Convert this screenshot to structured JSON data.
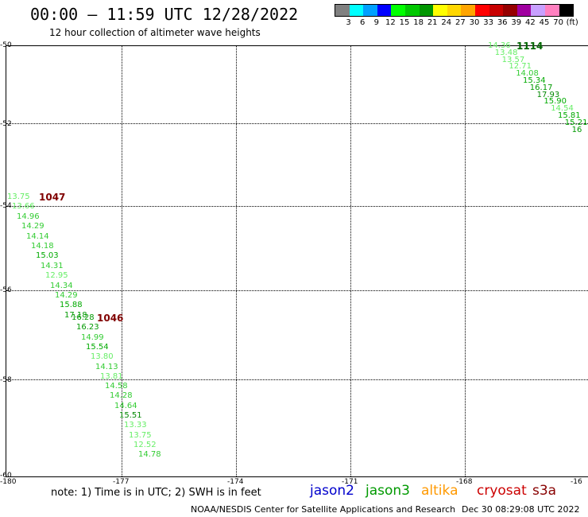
{
  "header": {
    "title": "00:00 – 11:59 UTC 12/28/2022",
    "subtitle": "12 hour collection of altimeter wave heights"
  },
  "legend": {
    "colors": [
      "#808080",
      "#00ffff",
      "#00a0ff",
      "#0000ff",
      "#00ff00",
      "#00c800",
      "#009600",
      "#ffff00",
      "#ffd700",
      "#ffa500",
      "#ff0000",
      "#c80000",
      "#960000",
      "#a000a0",
      "#c8a0ff",
      "#ff80c0",
      "#000000"
    ],
    "labels": [
      "3",
      "6",
      "9",
      "12",
      "15",
      "18",
      "21",
      "24",
      "27",
      "30",
      "33",
      "36",
      "39",
      "42",
      "45",
      "70",
      "(ft)"
    ]
  },
  "axes": {
    "lat_labels": [
      "-50",
      "-52",
      "-54",
      "-56",
      "-58",
      "-60"
    ],
    "lon_labels": [
      "-180",
      "-177",
      "-174",
      "-171",
      "-168",
      "-16"
    ]
  },
  "passes": [
    {
      "time": "1047",
      "time_color": "#800000",
      "readings": [
        {
          "v": "13.75",
          "c": "#66ee66"
        },
        {
          "v": "13.66",
          "c": "#66ee66"
        },
        {
          "v": "14.96",
          "c": "#33cc33"
        },
        {
          "v": "14.29",
          "c": "#33cc33"
        },
        {
          "v": "14.14",
          "c": "#33cc33"
        },
        {
          "v": "14.18",
          "c": "#33cc33"
        },
        {
          "v": "15.03",
          "c": "#00aa00"
        },
        {
          "v": "14.31",
          "c": "#33cc33"
        },
        {
          "v": "12.95",
          "c": "#66ee66"
        },
        {
          "v": "14.34",
          "c": "#33cc33"
        },
        {
          "v": "14.29",
          "c": "#33cc33"
        },
        {
          "v": "15.88",
          "c": "#00aa00"
        },
        {
          "v": "17.18",
          "c": "#009900"
        }
      ]
    },
    {
      "time": "1046",
      "time_color": "#800000",
      "readings": [
        {
          "v": "16.28",
          "c": "#009900"
        },
        {
          "v": "16.23",
          "c": "#009900"
        },
        {
          "v": "14.99",
          "c": "#33cc33"
        },
        {
          "v": "15.54",
          "c": "#00aa00"
        },
        {
          "v": "13.80",
          "c": "#66ee66"
        },
        {
          "v": "14.13",
          "c": "#33cc33"
        },
        {
          "v": "13.81",
          "c": "#66ee66"
        },
        {
          "v": "14.58",
          "c": "#33cc33"
        },
        {
          "v": "14.28",
          "c": "#33cc33"
        },
        {
          "v": "14.64",
          "c": "#33cc33"
        },
        {
          "v": "15.51",
          "c": "#008800"
        },
        {
          "v": "13.33",
          "c": "#66ee66"
        },
        {
          "v": "13.75",
          "c": "#66ee66"
        },
        {
          "v": "12.52",
          "c": "#66ee66"
        },
        {
          "v": "14.78",
          "c": "#33cc33"
        }
      ]
    },
    {
      "time": "1114",
      "time_color": "#006600",
      "readings": [
        {
          "v": "14.36",
          "c": "#66ee66"
        },
        {
          "v": "13.48",
          "c": "#66ee66"
        },
        {
          "v": "13.57",
          "c": "#66ee66"
        },
        {
          "v": "12.71",
          "c": "#66ee66"
        },
        {
          "v": "14.08",
          "c": "#33cc33"
        },
        {
          "v": "15.34",
          "c": "#00aa00"
        },
        {
          "v": "16.17",
          "c": "#009900"
        },
        {
          "v": "17.93",
          "c": "#008800"
        },
        {
          "v": "15.90",
          "c": "#00aa00"
        },
        {
          "v": "14.54",
          "c": "#66ee66"
        },
        {
          "v": "15.81",
          "c": "#00aa00"
        },
        {
          "v": "15.21",
          "c": "#00aa00"
        },
        {
          "v": "16",
          "c": "#009900"
        }
      ]
    }
  ],
  "footer": {
    "note": "note:  1) Time is in UTC; 2) SWH is in feet",
    "satellites": [
      {
        "name": "jason2",
        "color": "#0000cc"
      },
      {
        "name": "jason3",
        "color": "#009900"
      },
      {
        "name": "altika",
        "color": "#ff9900"
      },
      {
        "name": "cryosat",
        "color": "#cc0000"
      },
      {
        "name": "s3a",
        "color": "#880000"
      }
    ],
    "credit": "NOAA/NESDIS Center for Satellite Applications and Research",
    "generated": "Dec 30 08:29:08 UTC 2022"
  }
}
